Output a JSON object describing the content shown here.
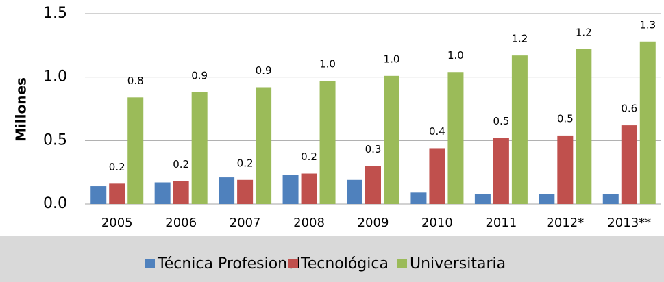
{
  "chart_data": {
    "type": "bar",
    "y_label": "Millones",
    "categories": [
      "2005",
      "2006",
      "2007",
      "2008",
      "2009",
      "2010",
      "2011",
      "2012*",
      "2013**"
    ],
    "series": [
      {
        "name": "Técnica Profesional",
        "color": "#4f81bd",
        "values": [
          0.14,
          0.17,
          0.21,
          0.23,
          0.19,
          0.09,
          0.08,
          0.08,
          0.08
        ]
      },
      {
        "name": "Tecnológica",
        "color": "#c0504d",
        "values": [
          0.16,
          0.18,
          0.19,
          0.24,
          0.3,
          0.44,
          0.52,
          0.54,
          0.62
        ],
        "value_labels": [
          "0.2",
          "0.2",
          "0.2",
          "0.2",
          "0.3",
          "0.4",
          "0.5",
          "0.5",
          "0.6"
        ]
      },
      {
        "name": "Universitaria",
        "color": "#9bbb59",
        "values": [
          0.84,
          0.88,
          0.92,
          0.97,
          1.01,
          1.04,
          1.17,
          1.22,
          1.28
        ],
        "value_labels": [
          "0.8",
          "0.9",
          "0.9",
          "1.0",
          "1.0",
          "1.0",
          "1.2",
          "1.2",
          "1.3"
        ]
      }
    ],
    "ylim": [
      0,
      1.5
    ],
    "yticks": [
      {
        "value": 0,
        "label": "0.0"
      },
      0.5,
      {
        "value": 1,
        "label": "1.0"
      },
      1.5
    ],
    "grid": true,
    "legend": "bottom"
  }
}
